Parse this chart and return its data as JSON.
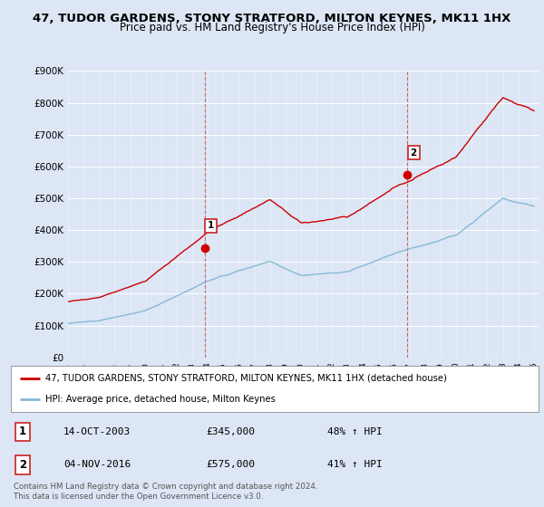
{
  "title": "47, TUDOR GARDENS, STONY STRATFORD, MILTON KEYNES, MK11 1HX",
  "subtitle": "Price paid vs. HM Land Registry's House Price Index (HPI)",
  "ylim": [
    0,
    900000
  ],
  "yticks": [
    0,
    100000,
    200000,
    300000,
    400000,
    500000,
    600000,
    700000,
    800000,
    900000
  ],
  "ytick_labels": [
    "£0",
    "£100K",
    "£200K",
    "£300K",
    "£400K",
    "£500K",
    "£600K",
    "£700K",
    "£800K",
    "£900K"
  ],
  "bg_color": "#dce6f5",
  "plot_bg": "#dce6f5",
  "red_color": "#cc0000",
  "blue_color": "#88b8d8",
  "transaction1_year": 2003.79,
  "transaction1_value": 345000,
  "transaction2_year": 2016.84,
  "transaction2_value": 575000,
  "legend_label_red": "47, TUDOR GARDENS, STONY STRATFORD, MILTON KEYNES, MK11 1HX (detached house)",
  "legend_label_blue": "HPI: Average price, detached house, Milton Keynes",
  "note1_date": "14-OCT-2003",
  "note1_price": "£345,000",
  "note1_hpi": "48% ↑ HPI",
  "note2_date": "04-NOV-2016",
  "note2_price": "£575,000",
  "note2_hpi": "41% ↑ HPI",
  "footer": "Contains HM Land Registry data © Crown copyright and database right 2024.\nThis data is licensed under the Open Government Licence v3.0.",
  "title_fontsize": 9.5,
  "subtitle_fontsize": 8.5
}
